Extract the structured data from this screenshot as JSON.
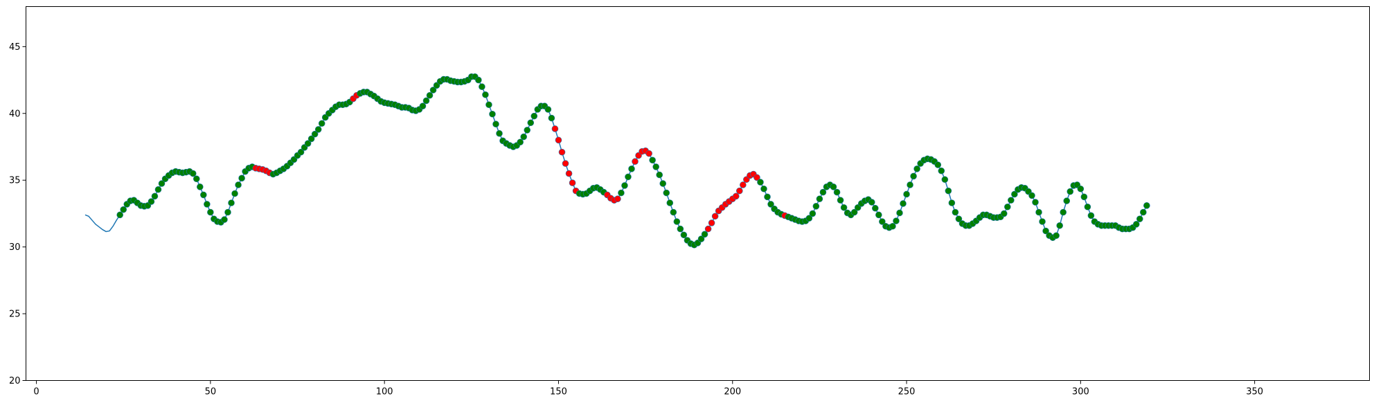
{
  "chart_data": {
    "type": "line",
    "title": "",
    "xlabel": "",
    "ylabel": "",
    "xlim": [
      -3,
      383
    ],
    "ylim": [
      20,
      48
    ],
    "grid": false,
    "x_ticks": [
      0,
      50,
      100,
      150,
      200,
      250,
      300,
      350
    ],
    "y_ticks": [
      20,
      25,
      30,
      35,
      40,
      45
    ],
    "colors": {
      "line": "#1f77b4",
      "up": "#008000",
      "down": "#ff0000",
      "marker_edge": "#1f77b4"
    },
    "line_x_start": 14,
    "line_values": [
      32.4,
      32.3,
      32.0,
      31.7,
      31.5,
      31.3,
      31.15,
      31.2,
      31.55,
      32.0,
      32.4,
      32.8,
      33.2,
      33.45,
      33.5,
      33.3,
      33.1,
      33.05,
      33.1,
      33.4,
      33.8,
      34.3,
      34.75,
      35.1,
      35.35,
      35.55,
      35.65,
      35.6,
      35.55,
      35.6,
      35.65,
      35.5,
      35.1,
      34.5,
      33.9,
      33.2,
      32.6,
      32.1,
      31.9,
      31.85,
      32.05,
      32.6,
      33.3,
      34.0,
      34.65,
      35.15,
      35.65,
      35.9,
      36.0,
      35.9,
      35.85,
      35.8,
      35.7,
      35.55,
      35.45,
      35.55,
      35.7,
      35.85,
      36.05,
      36.3,
      36.55,
      36.85,
      37.1,
      37.45,
      37.75,
      38.1,
      38.45,
      38.8,
      39.25,
      39.7,
      40.0,
      40.25,
      40.5,
      40.65,
      40.65,
      40.7,
      40.85,
      41.1,
      41.35,
      41.5,
      41.6,
      41.6,
      41.45,
      41.3,
      41.1,
      40.9,
      40.8,
      40.75,
      40.7,
      40.65,
      40.55,
      40.45,
      40.45,
      40.4,
      40.25,
      40.2,
      40.3,
      40.55,
      40.95,
      41.35,
      41.75,
      42.1,
      42.4,
      42.55,
      42.55,
      42.45,
      42.4,
      42.35,
      42.35,
      42.4,
      42.5,
      42.75,
      42.75,
      42.5,
      42.0,
      41.4,
      40.65,
      39.95,
      39.2,
      38.5,
      37.95,
      37.75,
      37.6,
      37.5,
      37.6,
      37.85,
      38.25,
      38.75,
      39.3,
      39.8,
      40.3,
      40.55,
      40.55,
      40.3,
      39.65,
      38.85,
      38.0,
      37.1,
      36.25,
      35.5,
      34.8,
      34.2,
      34.0,
      33.95,
      34.0,
      34.2,
      34.4,
      34.45,
      34.3,
      34.1,
      33.9,
      33.65,
      33.5,
      33.6,
      34.05,
      34.6,
      35.25,
      35.85,
      36.4,
      36.85,
      37.15,
      37.2,
      37.0,
      36.5,
      36.0,
      35.4,
      34.75,
      34.05,
      33.3,
      32.6,
      31.9,
      31.35,
      30.9,
      30.5,
      30.25,
      30.15,
      30.3,
      30.6,
      30.95,
      31.35,
      31.8,
      32.3,
      32.7,
      32.95,
      33.2,
      33.4,
      33.6,
      33.8,
      34.2,
      34.65,
      35.05,
      35.35,
      35.45,
      35.2,
      34.85,
      34.35,
      33.75,
      33.2,
      32.85,
      32.6,
      32.45,
      32.35,
      32.25,
      32.15,
      32.05,
      31.95,
      31.9,
      31.95,
      32.15,
      32.5,
      33.05,
      33.6,
      34.1,
      34.5,
      34.65,
      34.5,
      34.1,
      33.5,
      32.95,
      32.55,
      32.4,
      32.6,
      32.95,
      33.25,
      33.45,
      33.55,
      33.35,
      32.9,
      32.4,
      31.9,
      31.55,
      31.45,
      31.55,
      31.95,
      32.55,
      33.25,
      33.95,
      34.65,
      35.3,
      35.85,
      36.25,
      36.5,
      36.6,
      36.55,
      36.4,
      36.15,
      35.7,
      35.05,
      34.2,
      33.3,
      32.6,
      32.1,
      31.75,
      31.6,
      31.6,
      31.75,
      31.95,
      32.2,
      32.4,
      32.4,
      32.3,
      32.2,
      32.2,
      32.25,
      32.5,
      33.0,
      33.5,
      33.95,
      34.3,
      34.45,
      34.4,
      34.15,
      33.85,
      33.35,
      32.6,
      31.9,
      31.2,
      30.85,
      30.7,
      30.85,
      31.6,
      32.6,
      33.45,
      34.15,
      34.6,
      34.65,
      34.35,
      33.75,
      33.0,
      32.35,
      31.9,
      31.7,
      31.6,
      31.6,
      31.6,
      31.6,
      31.6,
      31.45,
      31.35,
      31.35,
      31.35,
      31.45,
      31.7,
      32.1,
      32.6,
      33.1
    ],
    "markers_x_start": 24,
    "marker_direction": "gggggggggggggggggggggggggggggggggggggggrrrrrgggggggggggggggggggggggrrggggggggggggggggggggggggggggggggggggggggggggggggggggggggrrrrrrrggggggggrrrrggggrrrrrggggggggggggggggrrrrrrrrrrrrrrrgggggggrggggggggggggggggggggggggggggggggggggggggggggggggggggggggggggggggggggggggggggggggggggggggggggggggggggggggggggggggggggggggggggggggggggggggggggggggggggggg"
  }
}
